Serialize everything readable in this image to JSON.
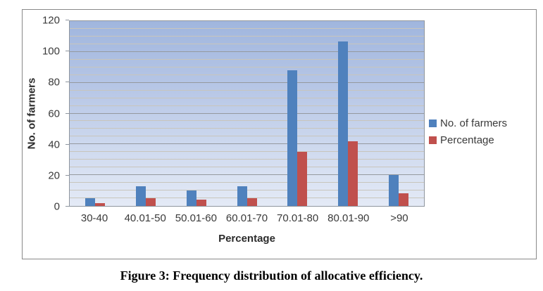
{
  "chart_data": {
    "type": "bar",
    "title": "",
    "categories": [
      "30-40",
      "40.01-50",
      "50.01-60",
      "60.01-70",
      "70.01-80",
      "80.01-90",
      ">90"
    ],
    "series": [
      {
        "name": "No. of farmers",
        "color": "#4F81BD",
        "values": [
          5,
          13,
          10,
          13,
          88,
          107,
          20
        ]
      },
      {
        "name": "Percentage",
        "color": "#C0504D",
        "values": [
          2,
          5,
          4,
          5,
          35,
          42,
          8
        ]
      }
    ],
    "xlabel": "Percentage",
    "ylabel": "No. of farmers",
    "ylim": [
      0,
      120
    ],
    "y_ticks": [
      0,
      20,
      40,
      60,
      80,
      100,
      120
    ],
    "y_minor_step": 5,
    "y_major_step": 20,
    "grid": "horizontal-minor-and-major",
    "legend_position": "right",
    "plot_background": "gradient-blue"
  },
  "caption": "Figure 3: Frequency distribution of allocative efficiency.",
  "colors": {
    "series_no_of_farmers": "#4F81BD",
    "series_percentage": "#C0504D",
    "plot_bg_top": "#A0B6DE",
    "plot_bg_bottom": "#E4EAF6",
    "gridline_minor": "#C8C5BC",
    "gridline_major": "#95999E",
    "chart_border": "#898989",
    "axis_text": "#3A3A3A"
  }
}
